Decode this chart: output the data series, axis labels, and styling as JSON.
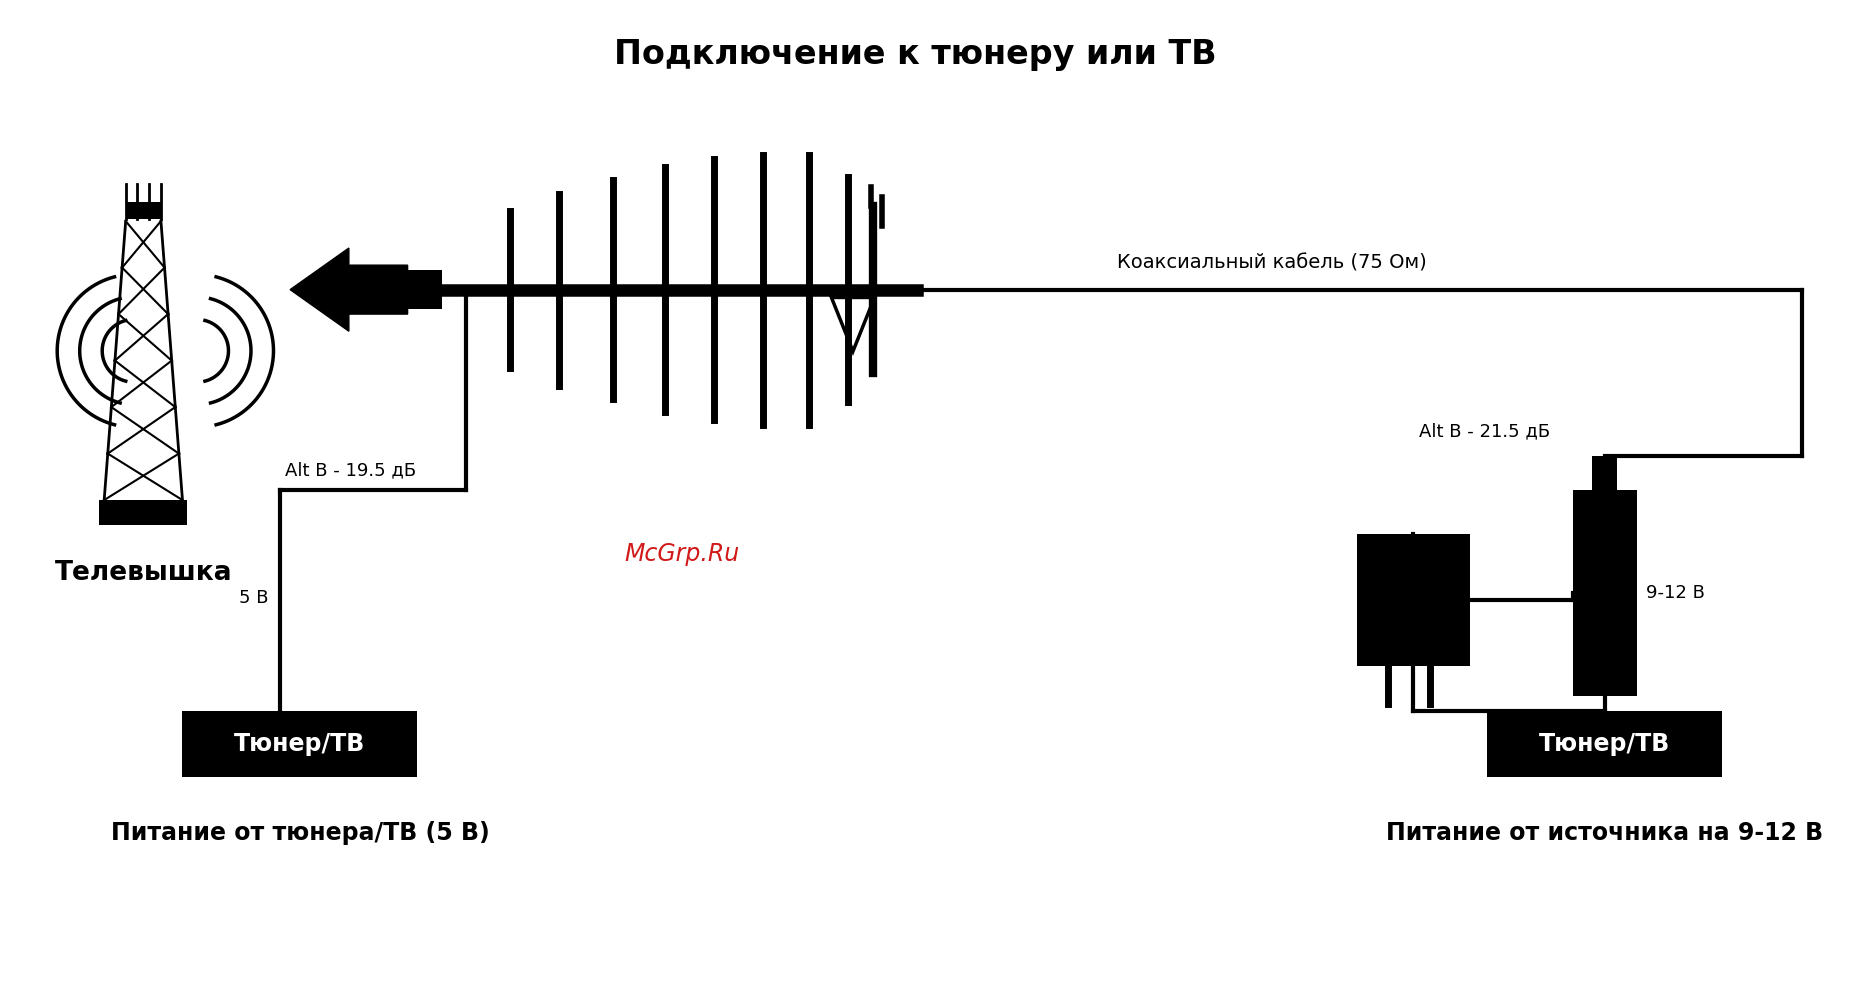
{
  "title": "Подключение к тюнеру или ТВ",
  "bg_color": "#ffffff",
  "title_fontsize": 24,
  "watermark": "McGrp.Ru",
  "watermark_color": "#cc0000",
  "cable_label": "Коаксиальный кабель (75 Ом)",
  "tower_label": "Телевышка",
  "tuner_label": "Тюнер/ТВ",
  "left_alt_label": "Alt B - 19.5 дБ",
  "left_v_label": "5 В",
  "right_alt_label": "Alt B - 21.5 дБ",
  "right_v_label": "9-12 В",
  "bottom_left_label": "Питание от тюнера/ТВ (5 В)",
  "bottom_right_label": "Питание от источника на 9-12 В"
}
